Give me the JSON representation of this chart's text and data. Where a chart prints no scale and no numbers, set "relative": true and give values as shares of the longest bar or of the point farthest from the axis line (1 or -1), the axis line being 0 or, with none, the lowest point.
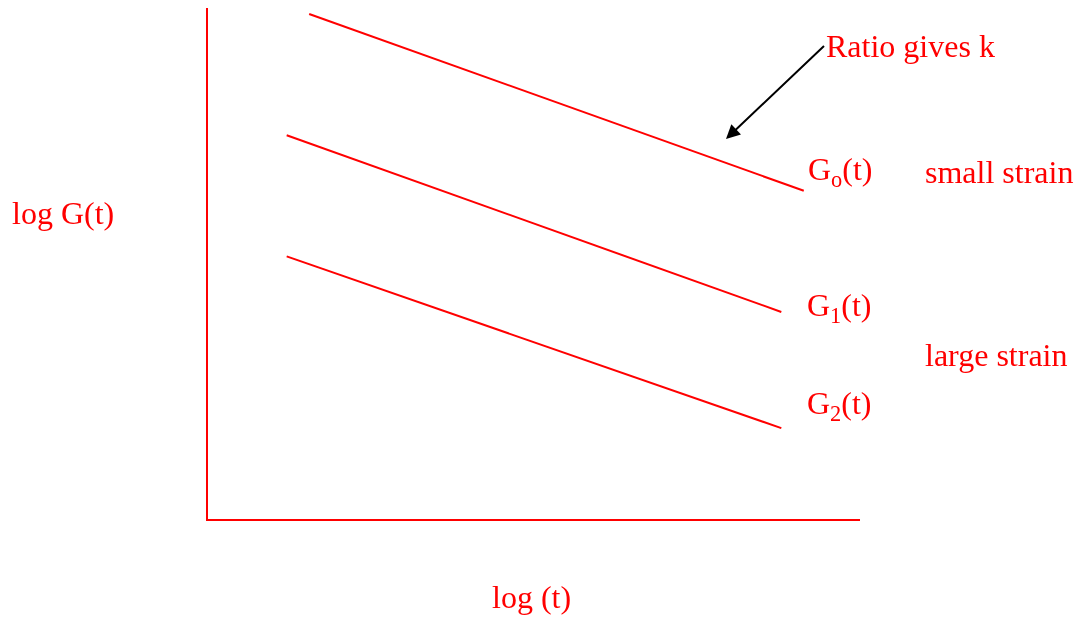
{
  "chart_data": {
    "type": "line",
    "relative": true,
    "xlabel": "log (t)",
    "ylabel": "log G(t)",
    "categories": [
      null,
      null,
      null,
      null,
      null,
      null,
      null,
      null,
      null,
      null,
      null,
      null,
      null,
      null,
      null,
      null,
      null,
      null,
      null,
      null,
      null,
      null,
      null,
      null,
      null,
      null,
      null,
      null,
      null
    ],
    "series": [
      {
        "name": "G$_{o}$(t)",
        "color": "#ff0000",
        "values": [
          null,
          null,
          null,
          null,
          1.0,
          null,
          null,
          null,
          null,
          null,
          null,
          null,
          null,
          null,
          null,
          null,
          null,
          null,
          null,
          null,
          null,
          null,
          null,
          null,
          null,
          null,
          0.65,
          null,
          null
        ]
      },
      {
        "name": "G$_{1}$(t)",
        "color": "#ff0000",
        "values": [
          null,
          null,
          null,
          0.76,
          null,
          null,
          null,
          null,
          null,
          null,
          null,
          null,
          null,
          null,
          null,
          null,
          null,
          null,
          null,
          null,
          null,
          null,
          null,
          null,
          null,
          0.41,
          null,
          null,
          null
        ]
      },
      {
        "name": "G$_{2}$(t)",
        "color": "#ff0000",
        "values": [
          null,
          null,
          null,
          0.52,
          null,
          null,
          null,
          null,
          null,
          null,
          null,
          null,
          null,
          null,
          null,
          null,
          null,
          null,
          null,
          null,
          null,
          null,
          null,
          null,
          null,
          0.18,
          null,
          null,
          null
        ]
      }
    ],
    "annotations": [
      "Ratio gives k",
      "small strain",
      "large strain"
    ],
    "legend": false,
    "marker": "none",
    "line_style": "solid"
  }
}
